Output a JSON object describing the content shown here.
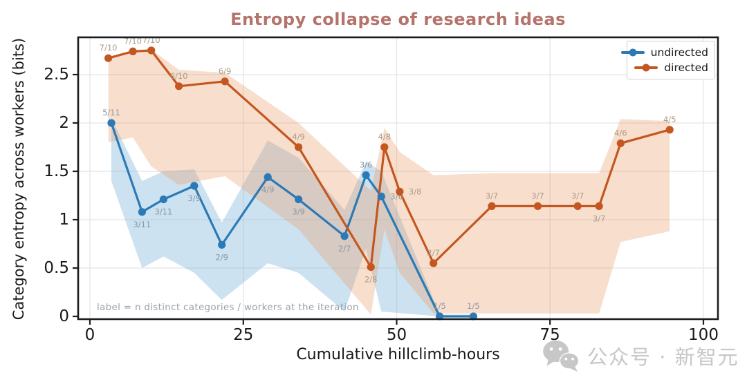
{
  "watermark": {
    "text": "公众号 · 新智元",
    "icon": "wechat-icon",
    "color": "#c7c7c7"
  },
  "chart_data": {
    "type": "line",
    "title": "Entropy collapse of research ideas",
    "xlabel": "Cumulative hillclimb-hours",
    "ylabel": "Category entropy across workers (bits)",
    "annotation": "label = n distinct categories / workers at the iteration",
    "x_ticks": [
      0,
      25,
      50,
      75,
      100
    ],
    "y_ticks": [
      0,
      0.5,
      1,
      1.5,
      2,
      2.5
    ],
    "xlim": [
      -2,
      102
    ],
    "ylim": [
      0,
      2.9
    ],
    "grid": true,
    "legend_position": "upper right",
    "series": [
      {
        "name": "undirected",
        "color": "#2b7ab5",
        "band_color": "#79b2d8",
        "band_opacity": 0.38,
        "label_color": "#8b97a3",
        "x": [
          3.5,
          8.5,
          12,
          17,
          21.5,
          29,
          34,
          41.5,
          45,
          47.5,
          57,
          62.5
        ],
        "y": [
          2.0,
          1.08,
          1.21,
          1.35,
          0.74,
          1.44,
          1.21,
          0.83,
          1.46,
          1.24,
          0.0,
          0.0
        ],
        "labels": [
          "5/11",
          "3/11",
          "3/11",
          "3/9",
          "2/9",
          "4/9",
          "3/9",
          "2/7",
          "3/6",
          "3/6",
          "1/5",
          "1/5"
        ],
        "label_side": [
          "above",
          "below",
          "below",
          "below",
          "below",
          "below",
          "below",
          "below",
          "above",
          "right",
          "above",
          "above"
        ],
        "band_lower": [
          1.4,
          0.5,
          0.62,
          0.45,
          0.17,
          0.55,
          0.45,
          0.05,
          0.7,
          0.05,
          0.0,
          0.0
        ],
        "band_upper": [
          2.05,
          1.4,
          1.5,
          1.52,
          0.97,
          1.82,
          1.64,
          1.1,
          1.6,
          1.5,
          0.02,
          0.02
        ]
      },
      {
        "name": "directed",
        "color": "#c4561f",
        "band_color": "#eb9a66",
        "band_opacity": 0.33,
        "label_color": "#ab9c87",
        "x": [
          3,
          7,
          10,
          14.5,
          22,
          34,
          45.8,
          48,
          50.5,
          56,
          65.5,
          73,
          79.5,
          83,
          86.5,
          94.5
        ],
        "y": [
          2.67,
          2.74,
          2.75,
          2.38,
          2.43,
          1.75,
          0.51,
          1.75,
          1.29,
          0.55,
          1.14,
          1.14,
          1.14,
          1.14,
          1.79,
          1.93
        ],
        "labels": [
          "7/10",
          "7/10",
          "7/10",
          "6/10",
          "6/9",
          "4/9",
          "2/8",
          "4/8",
          "3/8",
          "2/7",
          "3/7",
          "3/7",
          "3/7",
          "3/7",
          "4/6",
          "4/5"
        ],
        "label_side": [
          "above",
          "above",
          "above",
          "above",
          "above",
          "above",
          "below",
          "above",
          "right",
          "above",
          "above",
          "above",
          "above",
          "below",
          "above",
          "above"
        ],
        "band_lower": [
          1.8,
          1.85,
          1.55,
          1.36,
          1.45,
          0.9,
          0.02,
          0.9,
          0.45,
          0.03,
          0.03,
          0.03,
          0.03,
          0.03,
          0.77,
          0.88
        ],
        "band_upper": [
          2.68,
          2.75,
          2.76,
          2.55,
          2.52,
          2.0,
          1.3,
          1.95,
          1.7,
          1.46,
          1.48,
          1.48,
          1.48,
          1.48,
          2.04,
          2.02
        ]
      }
    ]
  }
}
